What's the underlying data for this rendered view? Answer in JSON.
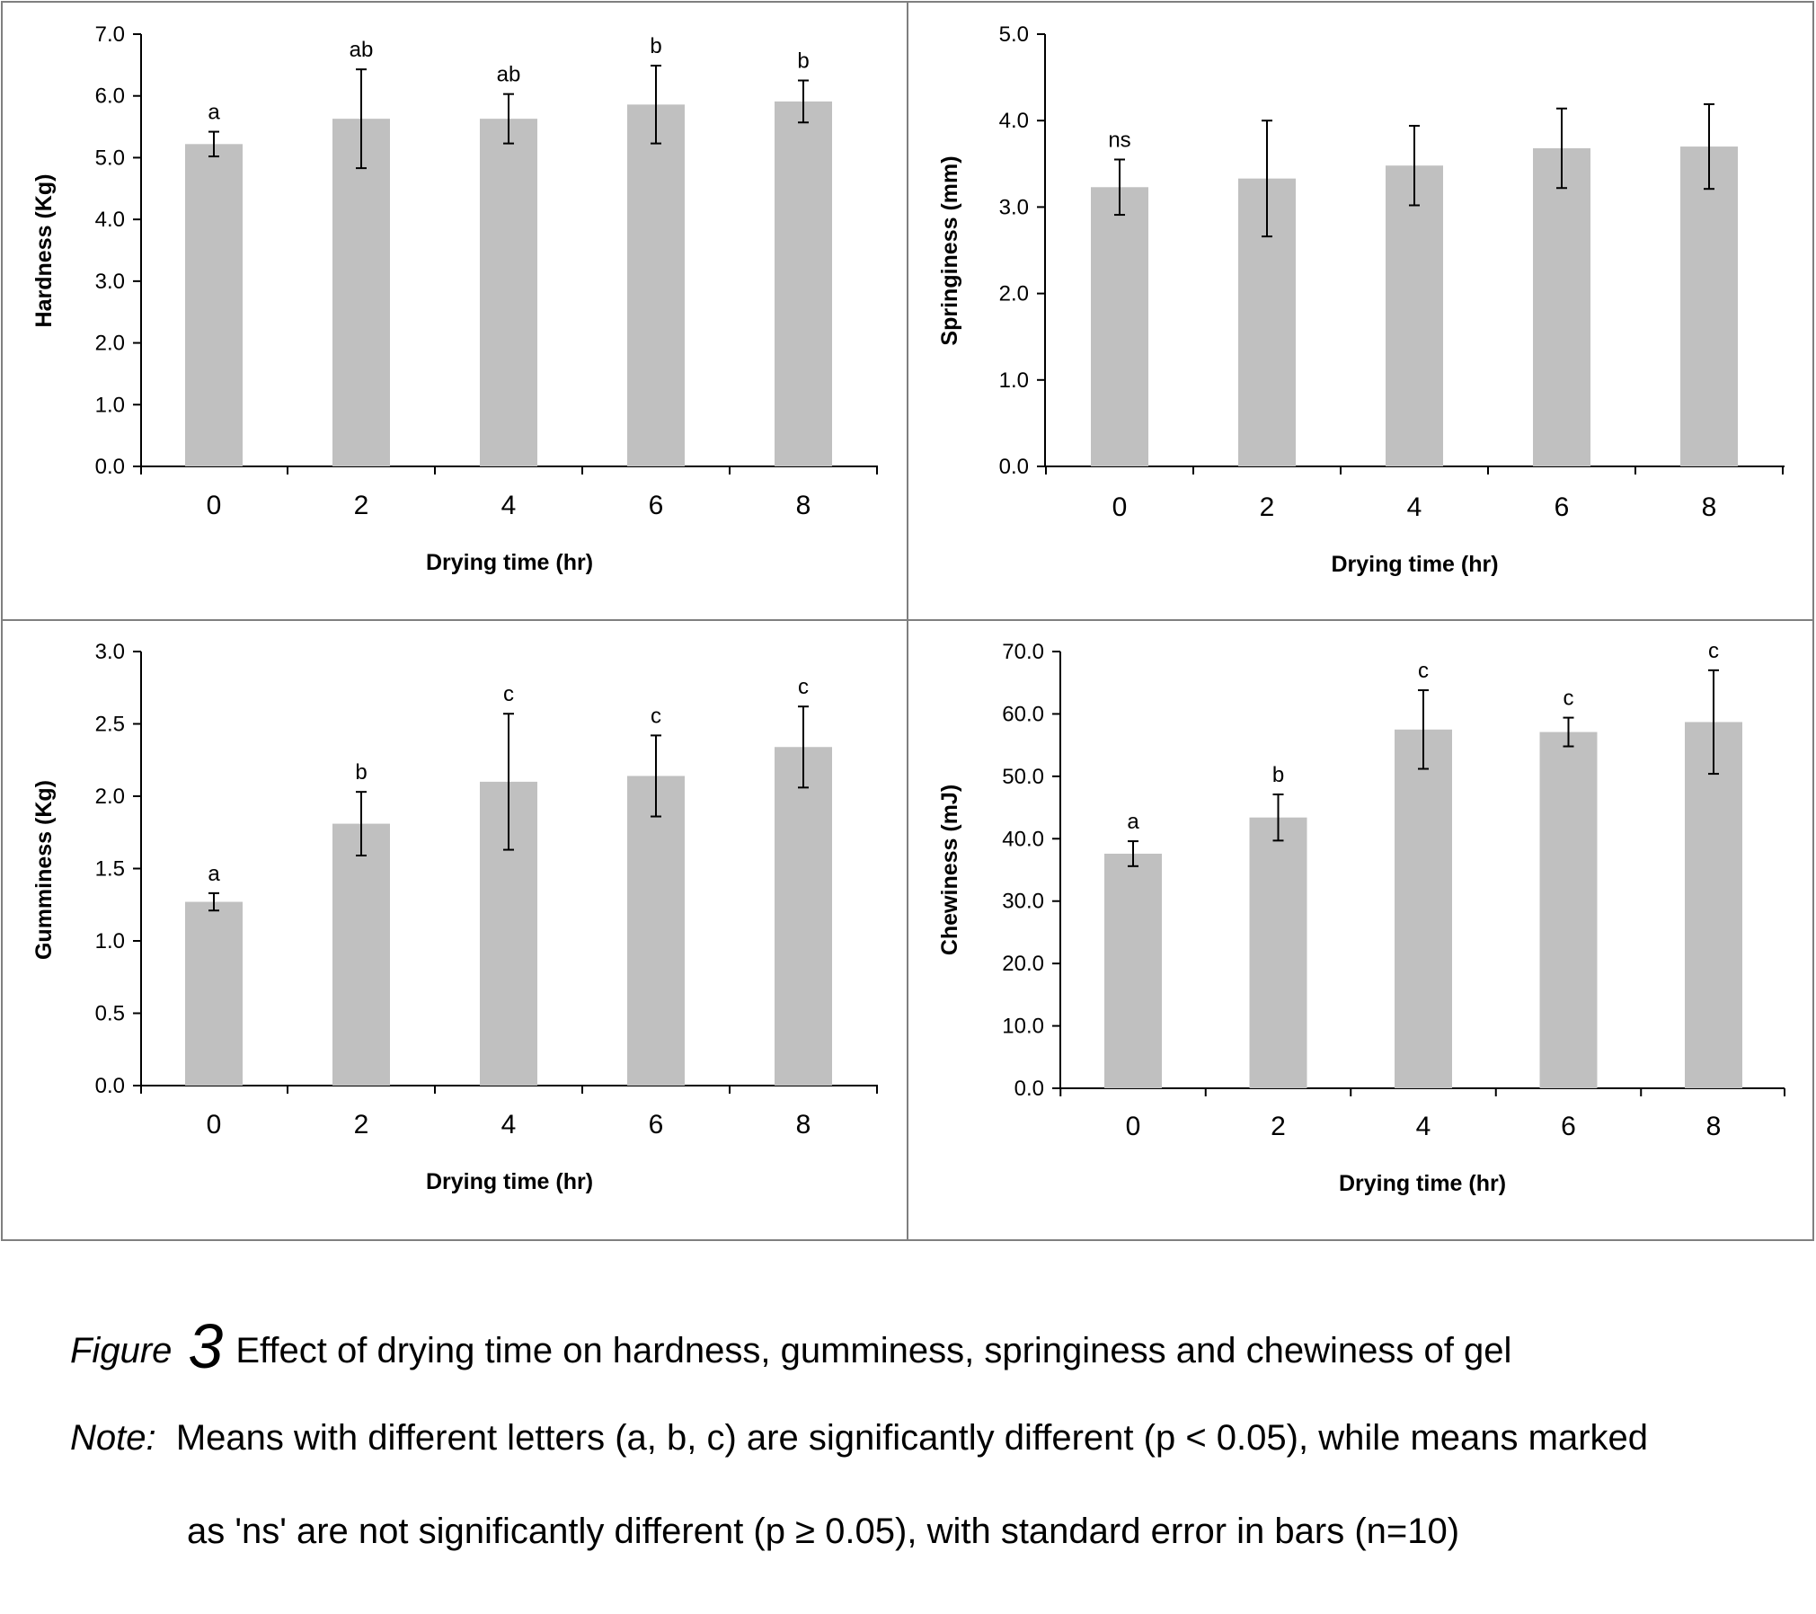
{
  "chart_data": [
    {
      "type": "bar",
      "xlabel": "Drying time (hr)",
      "ylabel": "Hardness (Kg)",
      "categories": [
        "0",
        "2",
        "4",
        "6",
        "8"
      ],
      "values": [
        5.22,
        5.63,
        5.63,
        5.86,
        5.91
      ],
      "errors": [
        0.2,
        0.8,
        0.4,
        0.63,
        0.34
      ],
      "letters": [
        "a",
        "ab",
        "ab",
        "b",
        "b"
      ],
      "ylim": [
        0,
        7
      ],
      "yticks": [
        "0.0",
        "1.0",
        "2.0",
        "3.0",
        "4.0",
        "5.0",
        "6.0",
        "7.0"
      ],
      "grid": false,
      "bar_color": "#c0c0c0"
    },
    {
      "type": "bar",
      "xlabel": "Drying time (hr)",
      "ylabel": "Springiness (mm)",
      "categories": [
        "0",
        "2",
        "4",
        "6",
        "8"
      ],
      "values": [
        3.23,
        3.33,
        3.48,
        3.68,
        3.7
      ],
      "errors": [
        0.32,
        0.67,
        0.46,
        0.46,
        0.49
      ],
      "letters": [
        "ns",
        "",
        "",
        "",
        ""
      ],
      "ylim": [
        0,
        5
      ],
      "yticks": [
        "0.0",
        "1.0",
        "2.0",
        "3.0",
        "4.0",
        "5.0"
      ],
      "grid": false,
      "bar_color": "#c0c0c0"
    },
    {
      "type": "bar",
      "xlabel": "Drying time (hr)",
      "ylabel": "Gumminess (Kg)",
      "categories": [
        "0",
        "2",
        "4",
        "6",
        "8"
      ],
      "values": [
        1.27,
        1.81,
        2.1,
        2.14,
        2.34
      ],
      "errors": [
        0.06,
        0.22,
        0.47,
        0.28,
        0.28
      ],
      "letters": [
        "a",
        "b",
        "c",
        "c",
        "c"
      ],
      "ylim": [
        0,
        3
      ],
      "yticks": [
        "0.0",
        "0.5",
        "1.0",
        "1.5",
        "2.0",
        "2.5",
        "3.0"
      ],
      "grid": false,
      "bar_color": "#c0c0c0"
    },
    {
      "type": "bar",
      "xlabel": "Drying time (hr)",
      "ylabel": "Chewiness (mJ)",
      "categories": [
        "0",
        "2",
        "4",
        "6",
        "8"
      ],
      "values": [
        37.6,
        43.4,
        57.5,
        57.1,
        58.7
      ],
      "errors": [
        2,
        3.7,
        6.3,
        2.3,
        8.3
      ],
      "letters": [
        "a",
        "b",
        "c",
        "c",
        "c"
      ],
      "ylim": [
        0,
        70
      ],
      "yticks": [
        "0.0",
        "10.0",
        "20.0",
        "30.0",
        "40.0",
        "50.0",
        "60.0",
        "70.0"
      ],
      "grid": false,
      "bar_color": "#c0c0c0"
    }
  ],
  "caption": {
    "figure_word": "Figure",
    "figure_number": "3",
    "title": "Effect of drying time on hardness, gumminess, springiness and chewiness of gel",
    "note_word": "Note:",
    "note_line1": "Means with different letters (a, b, c) are significantly different (p < 0.05), while means marked",
    "note_line2": "as 'ns' are not significantly different (p ≥ 0.05), with standard error in bars  (n=10)"
  }
}
